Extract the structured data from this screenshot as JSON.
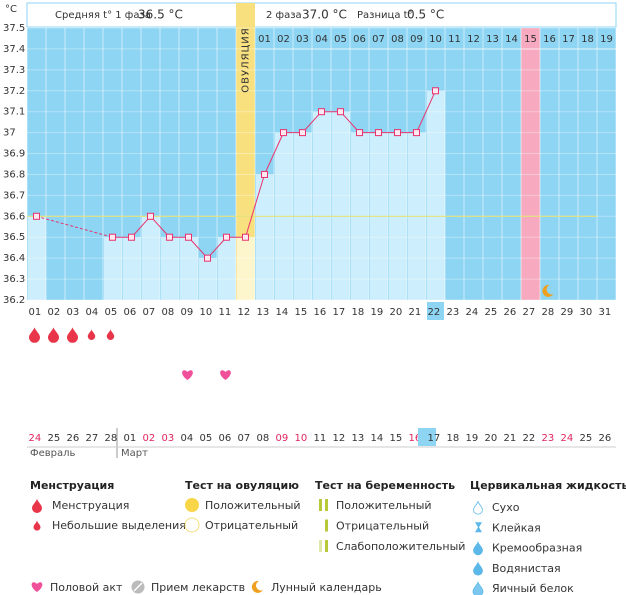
{
  "header": {
    "unit": "°C",
    "phase1_label": "Средняя t° 1 фаза",
    "phase1_value": "36.5 °C",
    "phase2_label": "2 фаза",
    "phase2_value": "37.0 °C",
    "diff_label": "Разница t°",
    "diff_value": "0.5 °C"
  },
  "chart_data": {
    "type": "line",
    "categories": [
      "01",
      "02",
      "03",
      "04",
      "05",
      "06",
      "07",
      "08",
      "09",
      "10",
      "11",
      "12",
      "13",
      "14",
      "15",
      "16",
      "17",
      "18",
      "19",
      "20",
      "21",
      "22",
      "23",
      "24",
      "25",
      "26",
      "27",
      "28",
      "29",
      "30",
      "31"
    ],
    "values": [
      36.6,
      null,
      null,
      null,
      36.5,
      36.5,
      36.6,
      36.5,
      36.5,
      36.4,
      36.5,
      36.5,
      36.8,
      37,
      37,
      37.1,
      37.1,
      37,
      37,
      37,
      37,
      37.2,
      null,
      null,
      null,
      null,
      null,
      null,
      null,
      null,
      null
    ],
    "color": "#e8336e",
    "ylim": [
      36.2,
      37.5
    ],
    "yticks": [
      36.2,
      36.3,
      36.4,
      36.5,
      36.6,
      36.7,
      36.8,
      36.9,
      37,
      37.1,
      37.2,
      37.3,
      37.4,
      37.5
    ],
    "grid": true,
    "coverline": 36.6,
    "ovulation_day": 12,
    "ovulation_label": "ОВУЛЯЦИЯ",
    "highlight_day": 27,
    "today": 22,
    "phase2_days": [
      "01",
      "02",
      "03",
      "04",
      "05",
      "06",
      "07",
      "08",
      "09",
      "10",
      "11",
      "12",
      "13",
      "14",
      "15",
      "16",
      "17",
      "18",
      "19"
    ],
    "dates": [
      "24",
      "25",
      "26",
      "27",
      "28",
      "01",
      "02",
      "03",
      "04",
      "05",
      "06",
      "07",
      "08",
      "09",
      "10",
      "11",
      "12",
      "13",
      "14",
      "15",
      "16",
      "17",
      "18",
      "19",
      "20",
      "21",
      "22",
      "23",
      "24",
      "25",
      "26"
    ],
    "weekend_color": "#e0245e",
    "weekends": [
      0,
      6,
      7,
      13,
      14,
      20,
      27,
      28
    ],
    "months": [
      "Февраль",
      "Март"
    ],
    "menstruation_heavy": [
      1,
      2,
      3
    ],
    "menstruation_light": [
      4,
      5
    ],
    "intercourse": [
      9,
      11
    ],
    "moon": [
      28
    ]
  },
  "legend": {
    "menstruation": {
      "title": "Менструация",
      "items": [
        "Менструация",
        "Небольшие выделения"
      ]
    },
    "ovulation_test": {
      "title": "Тест на овуляцию",
      "items": [
        "Положительный",
        "Отрицательный"
      ]
    },
    "pregnancy_test": {
      "title": "Тест на беременность",
      "items": [
        "Положительный",
        "Отрицательный",
        "Слабоположительный"
      ]
    },
    "cervical": {
      "title": "Цервикальная жидкость",
      "items": [
        "Сухо",
        "Клейкая",
        "Кремообразная",
        "Водянистая",
        "Яичный белок"
      ]
    },
    "other": [
      "Половой акт",
      "Прием лекарств",
      "Лунный календарь"
    ]
  }
}
